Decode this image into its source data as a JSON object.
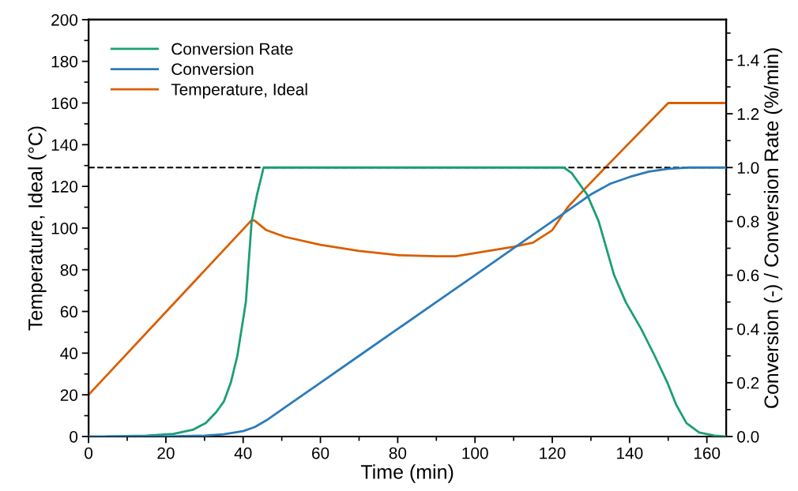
{
  "chart_data": {
    "type": "line",
    "xlabel": "Time (min)",
    "ylabel": "Temperature, Ideal (°C)",
    "y2label": "Conversion (-) / Conversion Rate (%/min)",
    "xlim": [
      0,
      165
    ],
    "xticks": [
      0,
      20,
      40,
      60,
      80,
      100,
      120,
      140,
      160
    ],
    "ylim": [
      0,
      200
    ],
    "yticks": [
      0,
      20,
      40,
      60,
      80,
      100,
      120,
      140,
      160,
      180,
      200
    ],
    "y2lim": [
      0,
      1.55
    ],
    "y2ticks": [
      {
        "value": 0,
        "label": "0.0"
      },
      {
        "value": 0.2,
        "label": "0.2"
      },
      {
        "value": 0.4,
        "label": "0.4"
      },
      {
        "value": 0.6,
        "label": "0.6"
      },
      {
        "value": 0.8,
        "label": "0.8"
      },
      {
        "value": 1,
        "label": "1.0"
      },
      {
        "value": 1.2,
        "label": "1.2"
      },
      {
        "value": 1.4,
        "label": "1.4"
      }
    ],
    "legend": "top left",
    "grid": false,
    "marker": "none",
    "line_style": "solid",
    "ref_lines": [
      {
        "axis": "y2",
        "value": 1,
        "color": "#000000",
        "line_style": "dashed"
      }
    ],
    "series": [
      {
        "name": "Conversion Rate",
        "color": "#1b9e77",
        "axis": "y2",
        "x": [
          5,
          15,
          22,
          27,
          30.3,
          33,
          35,
          36.8,
          38.5,
          40.7,
          42.2,
          43.6,
          45.3,
          123,
          125,
          127,
          129,
          132,
          134,
          136,
          139,
          143,
          146.5,
          149.8,
          152,
          154.7,
          158,
          162,
          165
        ],
        "values": [
          0,
          0.003,
          0.01,
          0.025,
          0.05,
          0.09,
          0.13,
          0.2,
          0.3,
          0.5,
          0.8,
          0.9,
          1.0,
          1.0,
          0.98,
          0.94,
          0.9,
          0.8,
          0.7,
          0.6,
          0.5,
          0.4,
          0.3,
          0.2,
          0.12,
          0.05,
          0.015,
          0.003,
          0
        ]
      },
      {
        "name": "Conversion",
        "color": "#2b7bba",
        "axis": "y2",
        "x": [
          0,
          20,
          30,
          35,
          40,
          43,
          46,
          50,
          60,
          70,
          80,
          90,
          100,
          110,
          120,
          125,
          130,
          135,
          140,
          145,
          150,
          155,
          165
        ],
        "values": [
          0,
          0,
          0.003,
          0.008,
          0.02,
          0.035,
          0.06,
          0.1,
          0.2,
          0.3,
          0.4,
          0.5,
          0.6,
          0.7,
          0.8,
          0.85,
          0.9,
          0.94,
          0.965,
          0.985,
          0.995,
          1.0,
          1.0
        ]
      },
      {
        "name": "Temperature, Ideal",
        "color": "#d95f02",
        "x": [
          0,
          42.2,
          43,
          46,
          50.8,
          60,
          70,
          80,
          90,
          95,
          100,
          110,
          115,
          120,
          124,
          128,
          133.6,
          150,
          165
        ],
        "values": [
          20,
          103.8,
          103.5,
          99,
          95.8,
          92,
          89,
          87,
          86.5,
          86.5,
          88,
          91,
          93,
          99,
          110,
          118,
          128.8,
          160,
          160
        ]
      }
    ]
  }
}
